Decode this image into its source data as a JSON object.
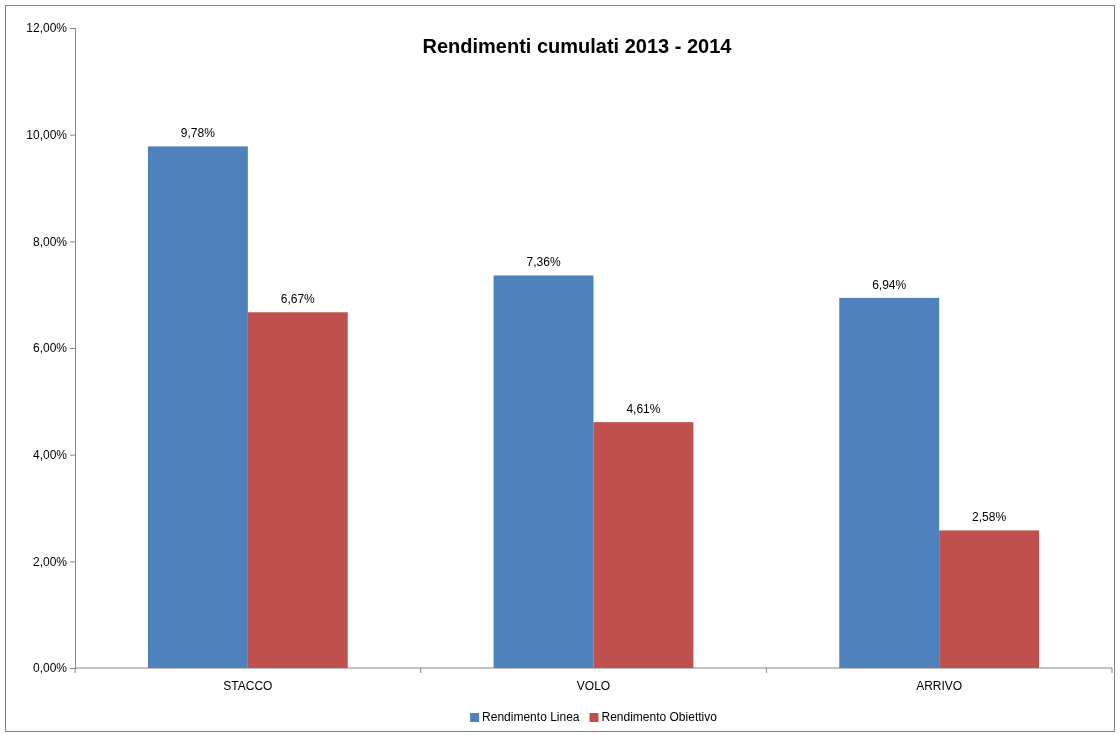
{
  "chart_data": {
    "type": "bar",
    "title": "Rendimenti cumulati 2013 - 2014",
    "categories": [
      "STACCO",
      "VOLO",
      "ARRIVO"
    ],
    "series": [
      {
        "name": "Rendimento Linea",
        "color": "#4f81bd",
        "values": [
          9.78,
          7.36,
          6.94
        ],
        "value_labels": [
          "9,78%",
          "7,36%",
          "6,94%"
        ]
      },
      {
        "name": "Rendimento Obiettivo",
        "color": "#c0504d",
        "values": [
          6.67,
          4.61,
          2.58
        ],
        "value_labels": [
          "6,67%",
          "4,61%",
          "2,58%"
        ]
      }
    ],
    "ylim": [
      0,
      12
    ],
    "yticks": [
      {
        "value": 0,
        "label": "0,00%"
      },
      {
        "value": 2,
        "label": "2,00%"
      },
      {
        "value": 4,
        "label": "4,00%"
      },
      {
        "value": 6,
        "label": "6,00%"
      },
      {
        "value": 8,
        "label": "8,00%"
      },
      {
        "value": 10,
        "label": "10,00%"
      },
      {
        "value": 12,
        "label": "12,00%"
      }
    ],
    "grid": false,
    "legend": "bottom"
  }
}
